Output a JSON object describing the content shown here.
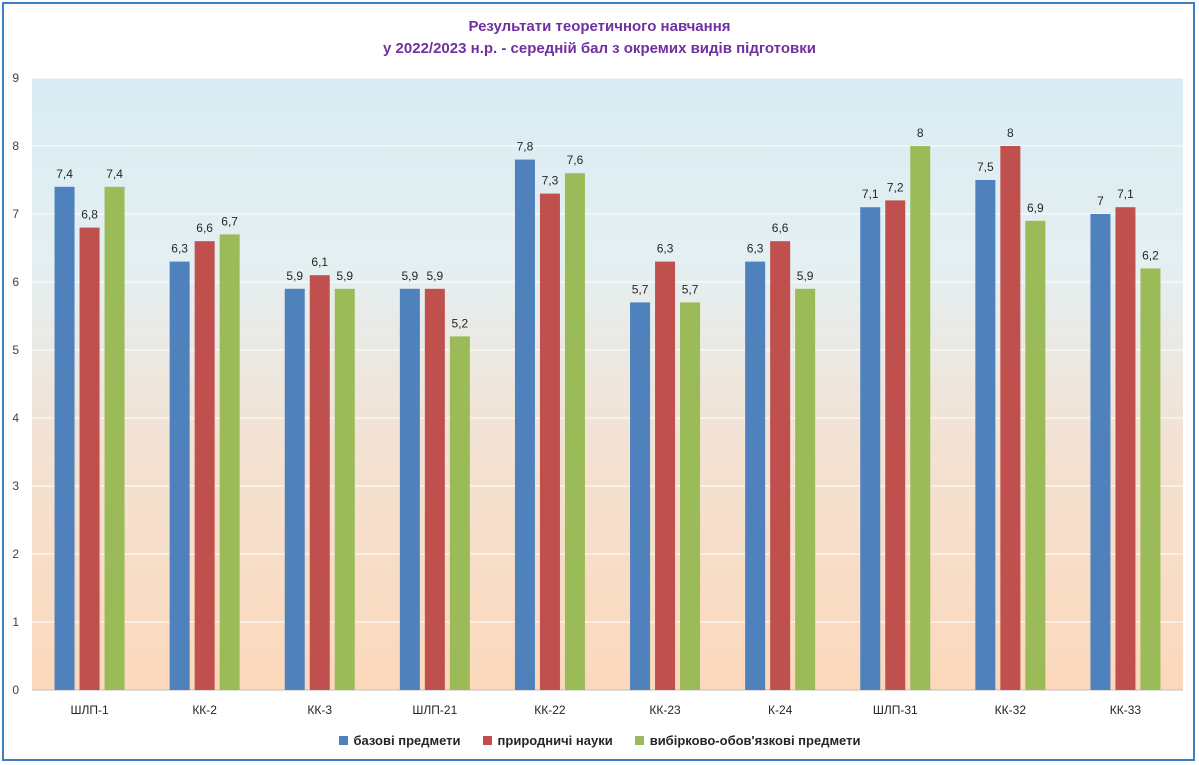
{
  "chart_data": {
    "type": "bar",
    "title": "Результати теоретичного навчання",
    "subtitle": "у  2022/2023 н.р. - середній бал з окремих видів підготовки",
    "categories": [
      "ШЛП-1",
      "КК-2",
      "КК-3",
      "ШЛП-21",
      "КК-22",
      "КК-23",
      "К-24",
      "ШЛП-31",
      "КК-32",
      "КК-33"
    ],
    "series": [
      {
        "name": "базові предмети",
        "color": "#4f81bd",
        "values": [
          7.4,
          6.3,
          5.9,
          5.9,
          7.8,
          5.7,
          6.3,
          7.1,
          7.5,
          7
        ],
        "labels": [
          "7,4",
          "6,3",
          "5,9",
          "5,9",
          "7,8",
          "5,7",
          "6,3",
          "7,1",
          "7,5",
          "7"
        ]
      },
      {
        "name": "природничі науки",
        "color": "#c0504d",
        "values": [
          6.8,
          6.6,
          6.1,
          5.9,
          7.3,
          6.3,
          6.6,
          7.2,
          8,
          7.1
        ],
        "labels": [
          "6,8",
          "6,6",
          "6,1",
          "5,9",
          "7,3",
          "6,3",
          "6,6",
          "7,2",
          "8",
          "7,1"
        ]
      },
      {
        "name": "вибірково-обов'язкові предмети",
        "color": "#9bbb59",
        "values": [
          7.4,
          6.7,
          5.9,
          5.2,
          7.6,
          5.7,
          5.9,
          8,
          6.9,
          6.2
        ],
        "labels": [
          "7,4",
          "6,7",
          "5,9",
          "5,2",
          "7,6",
          "5,7",
          "5,9",
          "8",
          "6,9",
          "6,2"
        ]
      }
    ],
    "ylim": [
      0,
      9
    ],
    "yticks": [
      0,
      1,
      2,
      3,
      4,
      5,
      6,
      7,
      8,
      9
    ],
    "grid": true,
    "legend_position": "bottom",
    "title_color": "#7030a0",
    "background_gradient": [
      "#dbeef4",
      "#fcd5b5"
    ]
  }
}
